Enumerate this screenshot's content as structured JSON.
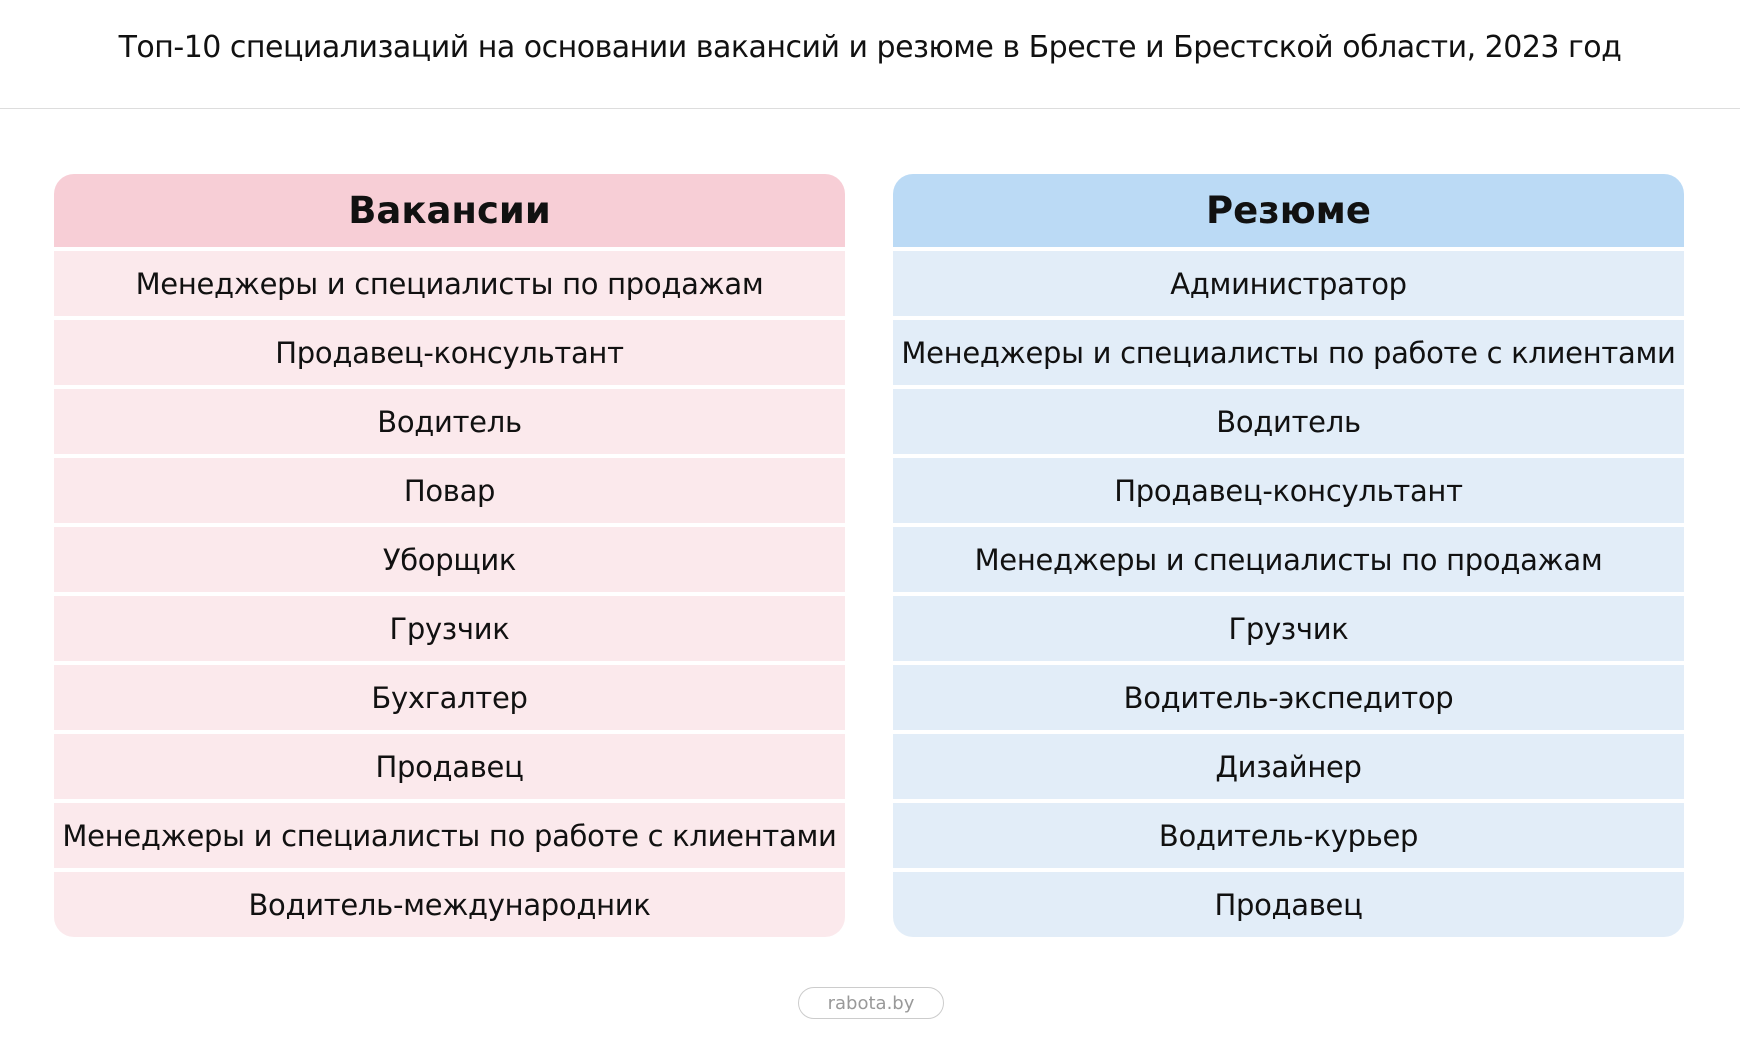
{
  "title": "Топ-10 специализаций на основании вакансий и резюме в Бресте и Брестской области, 2023 год",
  "tables": [
    {
      "header": "Вакансии",
      "rows": [
        "Менеджеры и специалисты по продажам",
        "Продавец-консультант",
        "Водитель",
        "Повар",
        "Уборщик",
        "Грузчик",
        "Бухгалтер",
        "Продавец",
        "Менеджеры и специалисты по работе с клиентами",
        "Водитель-международник"
      ]
    },
    {
      "header": "Резюме",
      "rows": [
        "Администратор",
        "Менеджеры и специалисты по работе с клиентами",
        "Водитель",
        "Продавец-консультант",
        "Менеджеры и специалисты по продажам",
        "Грузчик",
        "Водитель-экспедитор",
        "Дизайнер",
        "Водитель-курьер",
        "Продавец"
      ]
    }
  ],
  "footer": "rabota.by"
}
